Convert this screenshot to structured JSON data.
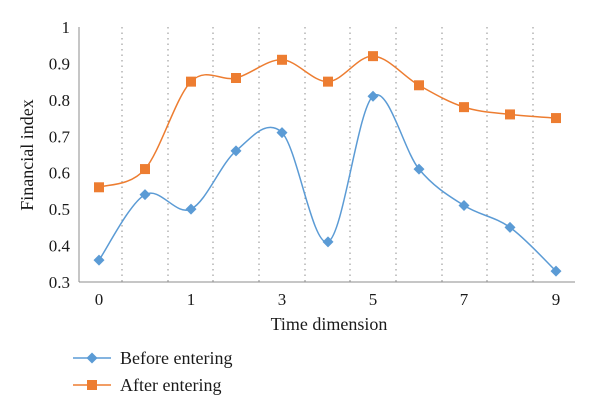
{
  "chart_data": {
    "type": "line",
    "title": "",
    "xlabel": "Time dimension",
    "ylabel": "Financial index",
    "x": [
      0,
      0.5,
      1,
      2,
      3,
      4,
      5,
      6,
      7,
      8,
      9
    ],
    "x_tick_labels": [
      "0",
      "1",
      "3",
      "5",
      "7",
      "9"
    ],
    "y_tick_labels": [
      "0.3",
      "0.4",
      "0.5",
      "0.6",
      "0.7",
      "0.8",
      "0.9",
      "1"
    ],
    "ylim": [
      0.3,
      1.0
    ],
    "grid": "vertical dotted",
    "legend_position": "bottom-left",
    "smooth": true,
    "series": [
      {
        "name": "Before entering",
        "color": "#5b9bd5",
        "marker": "diamond",
        "values": [
          0.36,
          0.54,
          0.5,
          0.66,
          0.71,
          0.41,
          0.81,
          0.61,
          0.51,
          0.45,
          0.33
        ]
      },
      {
        "name": "After entering",
        "color": "#ed7d31",
        "marker": "square",
        "values": [
          0.56,
          0.61,
          0.85,
          0.86,
          0.91,
          0.85,
          0.92,
          0.84,
          0.78,
          0.76,
          0.75
        ]
      }
    ]
  }
}
